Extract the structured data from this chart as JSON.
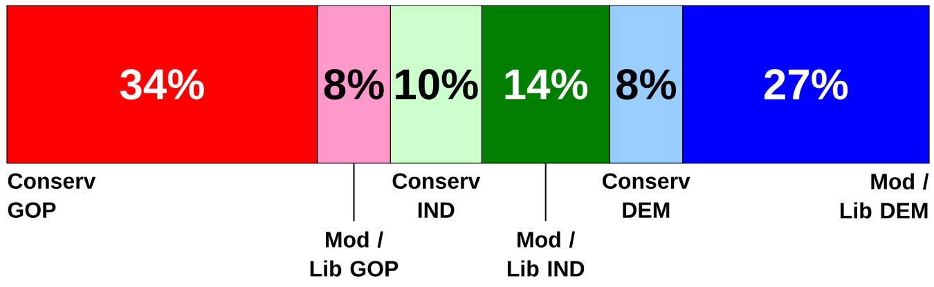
{
  "chart_data": {
    "type": "bar",
    "orientation": "horizontal",
    "stacked": true,
    "categories": [
      null
    ],
    "series": [
      {
        "name": "Conserv GOP",
        "color": "#ff0000",
        "values": [
          34
        ],
        "value_labels": [
          "34%"
        ]
      },
      {
        "name": "Mod / Lib GOP",
        "color": "#ff99cc",
        "values": [
          8
        ],
        "value_labels": [
          "8%"
        ]
      },
      {
        "name": "Conserv IND",
        "color": "#ccffcc",
        "values": [
          10
        ],
        "value_labels": [
          "10%"
        ]
      },
      {
        "name": "Mod / Lib IND",
        "color": "#008000",
        "values": [
          14
        ],
        "value_labels": [
          "14%"
        ]
      },
      {
        "name": "Conserv DEM",
        "color": "#99ccff",
        "values": [
          8
        ],
        "value_labels": [
          "8%"
        ]
      },
      {
        "name": "Mod / Lib DEM",
        "color": "#0000ff",
        "values": [
          27
        ],
        "value_labels": [
          "27%"
        ]
      }
    ]
  }
}
